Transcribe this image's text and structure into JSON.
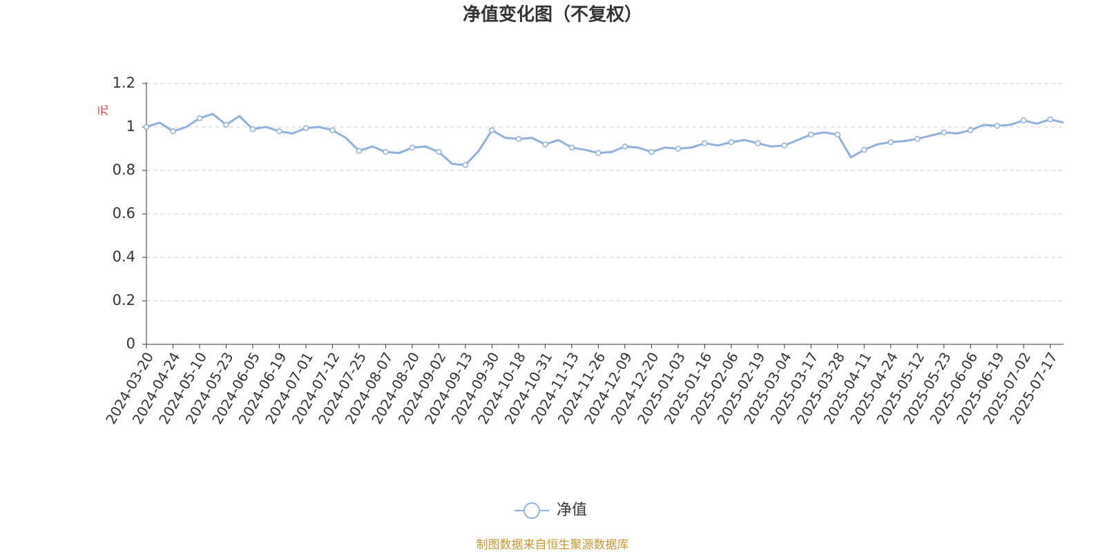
{
  "chart_data": {
    "type": "line",
    "title": "净值变化图（不复权）",
    "y_label": "元",
    "source": "制图数据来自恒生聚源数据库",
    "categories": [
      "2024-03-20",
      null,
      "2024-04-24",
      null,
      "2024-05-10",
      null,
      "2024-05-23",
      null,
      "2024-06-05",
      null,
      "2024-06-19",
      null,
      "2024-07-01",
      null,
      "2024-07-12",
      null,
      "2024-07-25",
      null,
      "2024-08-07",
      null,
      "2024-08-20",
      null,
      "2024-09-02",
      null,
      "2024-09-13",
      null,
      "2024-09-30",
      null,
      "2024-10-18",
      null,
      "2024-10-31",
      null,
      "2024-11-13",
      null,
      "2024-11-26",
      null,
      "2024-12-09",
      null,
      "2024-12-20",
      null,
      "2025-01-03",
      null,
      "2025-01-16",
      null,
      "2025-02-06",
      null,
      "2025-02-19",
      null,
      "2025-03-04",
      null,
      "2025-03-17",
      null,
      "2025-03-28",
      null,
      "2025-04-11",
      null,
      "2025-04-24",
      null,
      "2025-05-12",
      null,
      "2025-05-23",
      null,
      "2025-06-06",
      null,
      "2025-06-19",
      null,
      "2025-07-02",
      null,
      "2025-07-17",
      null
    ],
    "series": [
      {
        "name": "净值",
        "color": "#8eb0dc",
        "values": [
          1.0,
          1.02,
          0.98,
          1.0,
          1.04,
          1.06,
          1.01,
          1.05,
          0.99,
          1.0,
          0.98,
          0.97,
          0.995,
          1.0,
          0.985,
          0.95,
          0.89,
          0.91,
          0.885,
          0.88,
          0.905,
          0.91,
          0.885,
          0.83,
          0.825,
          0.89,
          0.985,
          0.95,
          0.945,
          0.95,
          0.92,
          0.94,
          0.905,
          0.895,
          0.88,
          0.885,
          0.91,
          0.905,
          0.885,
          0.905,
          0.9,
          0.905,
          0.925,
          0.915,
          0.93,
          0.94,
          0.925,
          0.91,
          0.915,
          0.94,
          0.965,
          0.975,
          0.965,
          0.86,
          0.895,
          0.92,
          0.93,
          0.935,
          0.945,
          0.96,
          0.975,
          0.97,
          0.985,
          1.01,
          1.005,
          1.01,
          1.03,
          1.015,
          1.035,
          1.02
        ]
      }
    ],
    "ylim": [
      0,
      1.2
    ],
    "yticks": [
      0,
      0.2,
      0.4,
      0.6,
      0.8,
      1,
      1.2
    ],
    "grid": true
  }
}
